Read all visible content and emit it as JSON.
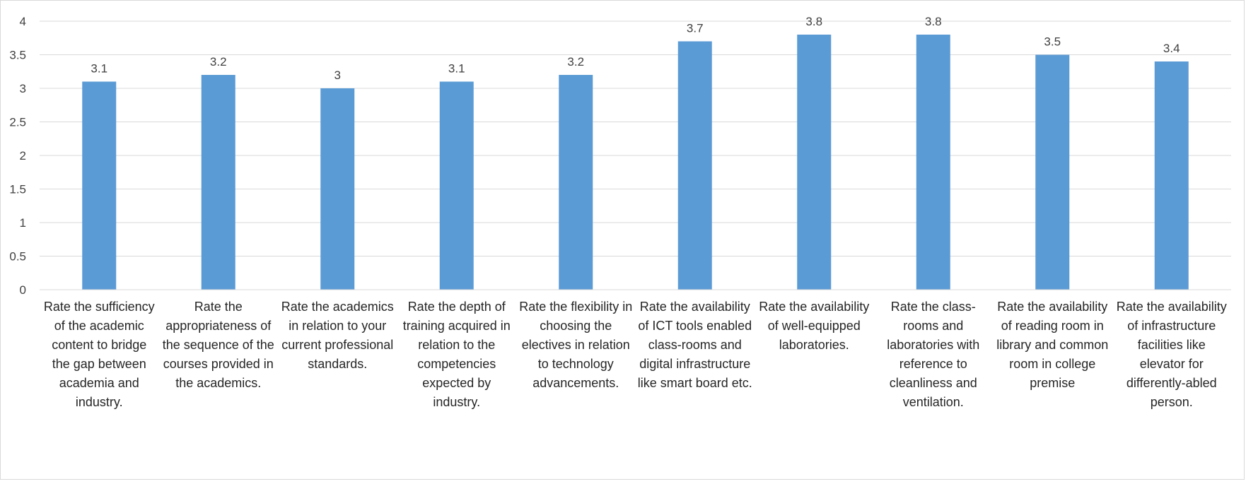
{
  "chart_data": {
    "type": "bar",
    "categories": [
      "Rate the sufficiency of the academic content to bridge the gap between academia and industry.",
      "Rate the appropriateness of the sequence of the courses provided in the academics.",
      "Rate the academics in relation to your current professional standards.",
      "Rate the depth of training acquired in relation to the competencies expected by industry.",
      "Rate the flexibility in choosing the electives in relation to technology advancements.",
      "Rate the availability of ICT tools enabled class-rooms and digital infrastructure like smart board etc.",
      "Rate the availability of well-equipped laboratories.",
      "Rate the class-rooms and laboratories with reference to cleanliness and ventilation.",
      "Rate the availability of reading room in library and common room in college premise",
      "Rate the availability of infrastructure facilities like elevator for differently-abled person."
    ],
    "values": [
      3.1,
      3.2,
      3.0,
      3.1,
      3.2,
      3.7,
      3.8,
      3.8,
      3.5,
      3.4
    ],
    "data_labels": [
      "3.1",
      "3.2",
      "3",
      "3.1",
      "3.2",
      "3.7",
      "3.8",
      "3.8",
      "3.5",
      "3.4"
    ],
    "y_ticks": [
      "0",
      "0.5",
      "1",
      "1.5",
      "2",
      "2.5",
      "3",
      "3.5",
      "4"
    ],
    "ylim": [
      0,
      4
    ],
    "title": "",
    "xlabel": "",
    "ylabel": "",
    "grid": true,
    "legend": "none",
    "bar_color": "#5B9BD5",
    "grid_color": "#d9d9d9"
  }
}
